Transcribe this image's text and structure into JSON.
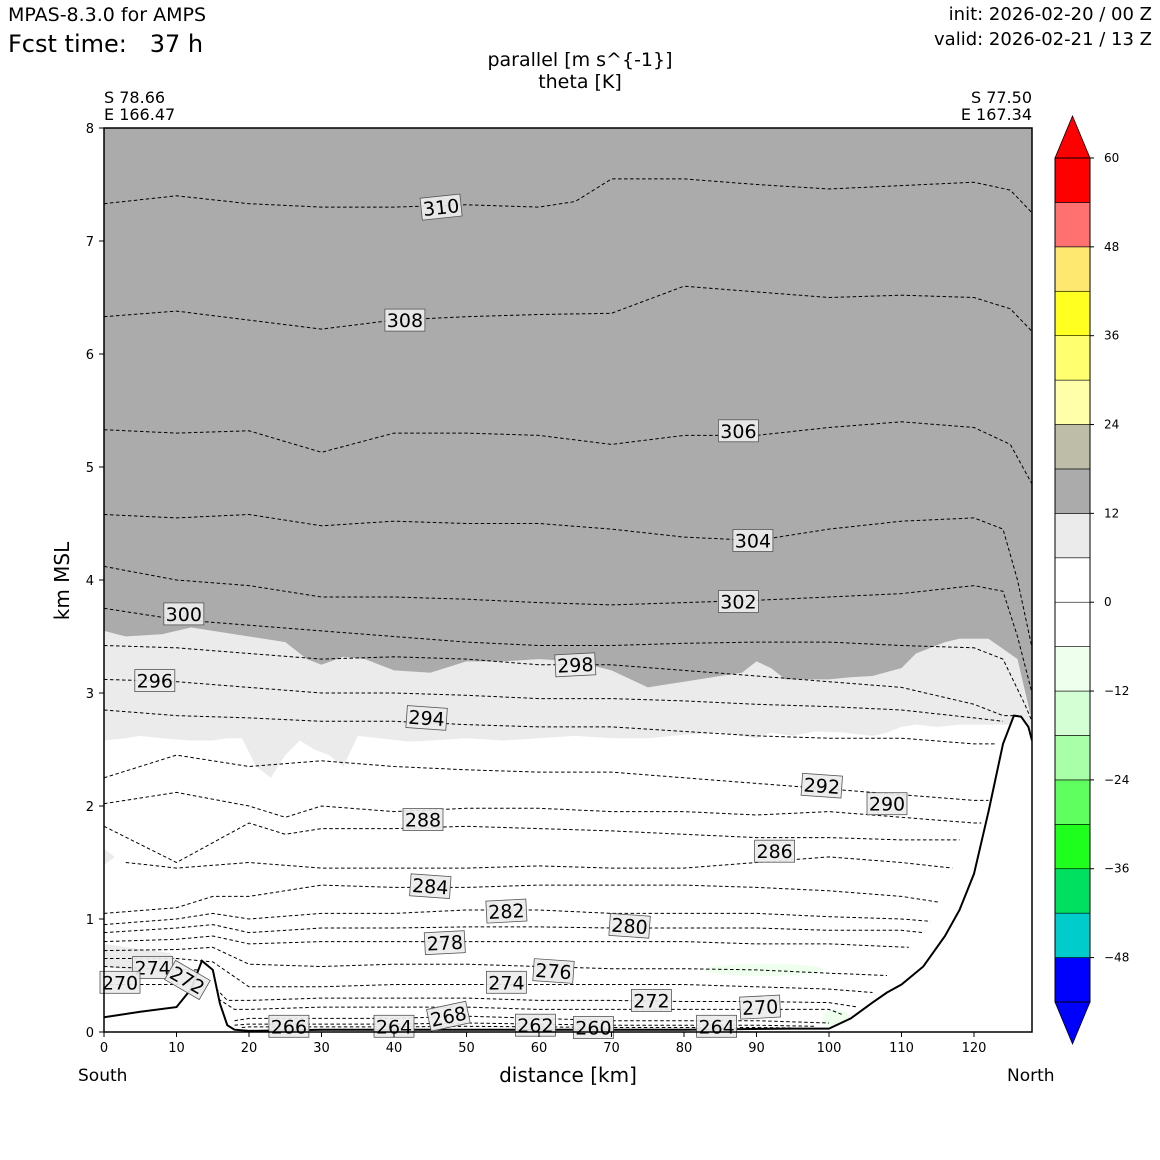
{
  "header": {
    "model": "MPAS-8.3.0 for AMPS",
    "fcst_time": "Fcst time:   37 h",
    "init": "init: 2026-02-20 / 00 Z",
    "valid": "valid: 2026-02-21 / 13 Z"
  },
  "title": {
    "line1": "parallel [m s^{-1}]",
    "line2": "theta [K]"
  },
  "endpoints": {
    "left_lat": "S 78.66",
    "left_lon": "E 166.47",
    "right_lat": "S 77.50",
    "right_lon": "E 167.34"
  },
  "axes": {
    "xlabel": "distance [km]",
    "ylabel": "km MSL",
    "south_label": "South",
    "north_label": "North"
  },
  "chart_data": {
    "type": "contour",
    "x_range": [
      0,
      128
    ],
    "y_range": [
      0,
      8
    ],
    "x_ticks": [
      0,
      10,
      20,
      30,
      40,
      50,
      60,
      70,
      80,
      90,
      100,
      110,
      120
    ],
    "y_ticks": [
      0,
      1,
      2,
      3,
      4,
      5,
      6,
      7,
      8
    ],
    "colorbar": {
      "levels": [
        -54,
        -48,
        -42,
        -36,
        -30,
        -24,
        -18,
        -12,
        -6,
        0,
        6,
        12,
        18,
        24,
        30,
        36,
        42,
        48,
        54,
        60
      ],
      "colors": [
        "#0000ff",
        "#00cccc",
        "#00e060",
        "#1eff1e",
        "#60ff60",
        "#a8ffa8",
        "#d4ffd4",
        "#eeffee",
        "#ffffff",
        "#ffffff",
        "#ebebeb",
        "#ababab",
        "#bebea8",
        "#ffffaa",
        "#ffff70",
        "#ffff20",
        "#ffe870",
        "#ff7070",
        "#ff0000"
      ],
      "under_color": "#0000ff",
      "over_color": "#ff0000",
      "tick_values": [
        -48,
        -36,
        -24,
        -12,
        0,
        12,
        24,
        36,
        48,
        60
      ],
      "tick_labels": [
        "−48",
        "−36",
        "−24",
        "−12",
        "0",
        "12",
        "24",
        "36",
        "48",
        "60"
      ]
    },
    "parallel_wind_regions": [
      {
        "range": "12 to 18",
        "color": "#ababab",
        "description_bounds": "above ~3.0-3.6 km"
      },
      {
        "range": "6 to 12",
        "color": "#ebebeb",
        "description_bounds": "~2.6-3.6 km band"
      },
      {
        "range": "-6 to 0",
        "color": "#eeffee",
        "description_bounds": "small patches near surface"
      }
    ],
    "terrain": {
      "x": [
        0,
        5,
        10,
        12,
        13.5,
        15,
        16,
        17,
        18,
        20,
        30,
        60,
        80,
        95,
        100,
        103,
        106,
        108,
        110,
        113,
        116,
        118,
        120,
        122,
        124,
        125.5,
        126.5,
        127.5,
        128
      ],
      "y": [
        0.13,
        0.18,
        0.22,
        0.38,
        0.63,
        0.55,
        0.25,
        0.06,
        0.02,
        0.01,
        0.02,
        0.02,
        0.02,
        0.03,
        0.03,
        0.12,
        0.26,
        0.35,
        0.42,
        0.58,
        0.85,
        1.08,
        1.4,
        1.95,
        2.55,
        2.8,
        2.79,
        2.7,
        2.58
      ]
    },
    "theta_contours": [
      {
        "value": 310,
        "x": [
          0,
          10,
          20,
          30,
          40,
          50,
          60,
          65,
          70,
          80,
          90,
          100,
          110,
          120,
          125,
          128
        ],
        "y": [
          7.33,
          7.4,
          7.33,
          7.3,
          7.3,
          7.32,
          7.3,
          7.35,
          7.55,
          7.55,
          7.5,
          7.46,
          7.49,
          7.52,
          7.45,
          7.25
        ]
      },
      {
        "value": 308,
        "x": [
          0,
          10,
          20,
          30,
          40,
          50,
          60,
          70,
          80,
          90,
          100,
          110,
          120,
          125,
          128
        ],
        "y": [
          6.33,
          6.38,
          6.3,
          6.22,
          6.3,
          6.33,
          6.35,
          6.36,
          6.6,
          6.55,
          6.5,
          6.52,
          6.5,
          6.4,
          6.2
        ]
      },
      {
        "value": 306,
        "x": [
          0,
          10,
          20,
          30,
          40,
          50,
          60,
          70,
          80,
          90,
          100,
          110,
          120,
          125,
          128
        ],
        "y": [
          5.33,
          5.3,
          5.32,
          5.13,
          5.3,
          5.3,
          5.28,
          5.2,
          5.28,
          5.28,
          5.35,
          5.4,
          5.35,
          5.2,
          4.85
        ]
      },
      {
        "value": 304,
        "x": [
          0,
          10,
          20,
          30,
          40,
          50,
          60,
          70,
          80,
          90,
          100,
          110,
          120,
          124,
          126,
          128
        ],
        "y": [
          4.58,
          4.55,
          4.58,
          4.48,
          4.52,
          4.5,
          4.5,
          4.45,
          4.38,
          4.35,
          4.45,
          4.52,
          4.55,
          4.45,
          4.0,
          3.4
        ]
      },
      {
        "value": 302,
        "x": [
          0,
          10,
          20,
          30,
          40,
          50,
          60,
          70,
          80,
          90,
          100,
          110,
          120,
          124,
          126,
          128
        ],
        "y": [
          4.12,
          4.0,
          3.95,
          3.85,
          3.85,
          3.83,
          3.8,
          3.78,
          3.8,
          3.82,
          3.85,
          3.88,
          3.95,
          3.9,
          3.5,
          3.0
        ]
      },
      {
        "value": 300,
        "x": [
          0,
          10,
          20,
          30,
          40,
          50,
          60,
          70,
          80,
          90,
          100,
          110,
          120,
          124,
          127,
          128
        ],
        "y": [
          3.75,
          3.65,
          3.6,
          3.55,
          3.5,
          3.45,
          3.42,
          3.42,
          3.44,
          3.45,
          3.45,
          3.42,
          3.4,
          3.3,
          2.9,
          2.75
        ]
      },
      {
        "value": 298,
        "x": [
          0,
          10,
          20,
          30,
          40,
          50,
          60,
          70,
          80,
          90,
          100,
          110,
          120,
          124,
          126
        ],
        "y": [
          3.42,
          3.4,
          3.35,
          3.3,
          3.32,
          3.3,
          3.25,
          3.25,
          3.2,
          3.15,
          3.1,
          3.05,
          2.9,
          2.8,
          2.8
        ]
      },
      {
        "value": 296,
        "x": [
          0,
          10,
          20,
          30,
          40,
          50,
          60,
          70,
          80,
          90,
          100,
          110,
          120,
          124
        ],
        "y": [
          3.12,
          3.1,
          3.05,
          3.0,
          3.0,
          2.98,
          2.95,
          2.95,
          2.93,
          2.9,
          2.88,
          2.85,
          2.78,
          2.75
        ]
      },
      {
        "value": 294,
        "x": [
          0,
          10,
          20,
          30,
          40,
          50,
          60,
          70,
          80,
          90,
          100,
          110,
          120,
          123
        ],
        "y": [
          2.85,
          2.8,
          2.78,
          2.75,
          2.75,
          2.72,
          2.7,
          2.7,
          2.66,
          2.62,
          2.6,
          2.6,
          2.55,
          2.55
        ]
      },
      {
        "value": 292,
        "x": [
          0,
          10,
          20,
          30,
          40,
          50,
          60,
          70,
          80,
          90,
          100,
          110,
          120,
          122
        ],
        "y": [
          2.25,
          2.45,
          2.35,
          2.4,
          2.35,
          2.32,
          2.3,
          2.3,
          2.25,
          2.2,
          2.15,
          2.1,
          2.05,
          2.05
        ]
      },
      {
        "value": 290,
        "x": [
          0,
          10,
          20,
          25,
          30,
          40,
          50,
          60,
          70,
          80,
          90,
          100,
          110,
          120,
          121
        ],
        "y": [
          2.02,
          2.12,
          2.0,
          1.9,
          2.0,
          1.95,
          1.98,
          1.98,
          1.95,
          1.95,
          1.92,
          1.95,
          1.9,
          1.85,
          1.85
        ]
      },
      {
        "value": 288,
        "x": [
          0,
          10,
          20,
          25,
          30,
          40,
          50,
          60,
          70,
          80,
          90,
          100,
          110,
          118
        ],
        "y": [
          1.82,
          1.5,
          1.85,
          1.75,
          1.8,
          1.8,
          1.82,
          1.8,
          1.78,
          1.75,
          1.72,
          1.72,
          1.7,
          1.7
        ]
      },
      {
        "value": 286,
        "x": [
          3,
          6,
          10,
          20,
          30,
          40,
          50,
          60,
          70,
          80,
          90,
          100,
          110,
          117
        ],
        "y": [
          1.5,
          1.48,
          1.45,
          1.5,
          1.45,
          1.45,
          1.45,
          1.47,
          1.45,
          1.45,
          1.5,
          1.55,
          1.5,
          1.45
        ]
      },
      {
        "value": 284,
        "x": [
          0,
          10,
          15,
          20,
          30,
          40,
          50,
          60,
          70,
          80,
          90,
          100,
          110,
          115
        ],
        "y": [
          1.05,
          1.1,
          1.2,
          1.2,
          1.3,
          1.28,
          1.28,
          1.3,
          1.3,
          1.3,
          1.28,
          1.25,
          1.2,
          1.15
        ]
      },
      {
        "value": 282,
        "x": [
          0,
          10,
          15,
          20,
          30,
          40,
          50,
          60,
          70,
          80,
          90,
          100,
          110,
          114
        ],
        "y": [
          0.95,
          1.0,
          1.05,
          1.0,
          1.05,
          1.05,
          1.08,
          1.08,
          1.05,
          1.05,
          1.05,
          1.02,
          1.0,
          0.98
        ]
      },
      {
        "value": 280,
        "x": [
          0,
          10,
          15,
          20,
          30,
          40,
          50,
          60,
          70,
          80,
          90,
          100,
          110,
          113
        ],
        "y": [
          0.88,
          0.92,
          0.95,
          0.88,
          0.92,
          0.92,
          0.93,
          0.93,
          0.92,
          0.92,
          0.92,
          0.9,
          0.9,
          0.88
        ]
      },
      {
        "value": 278,
        "x": [
          0,
          10,
          15,
          20,
          30,
          40,
          50,
          60,
          70,
          80,
          90,
          100,
          111
        ],
        "y": [
          0.8,
          0.82,
          0.85,
          0.78,
          0.8,
          0.8,
          0.8,
          0.8,
          0.8,
          0.8,
          0.78,
          0.78,
          0.75
        ]
      },
      {
        "value": 276,
        "x": [
          0,
          10,
          15,
          20,
          30,
          40,
          50,
          60,
          70,
          80,
          90,
          100,
          108
        ],
        "y": [
          0.72,
          0.73,
          0.75,
          0.6,
          0.58,
          0.6,
          0.6,
          0.58,
          0.56,
          0.56,
          0.55,
          0.52,
          0.5
        ]
      },
      {
        "value": 274,
        "x": [
          0,
          10,
          15,
          20,
          30,
          40,
          50,
          60,
          70,
          80,
          90,
          100,
          106
        ],
        "y": [
          0.65,
          0.65,
          0.62,
          0.4,
          0.4,
          0.42,
          0.42,
          0.42,
          0.42,
          0.42,
          0.4,
          0.38,
          0.35
        ]
      },
      {
        "value": 272,
        "x": [
          0,
          10,
          13,
          17,
          20,
          30,
          40,
          50,
          60,
          70,
          80,
          90,
          100,
          104
        ],
        "y": [
          0.58,
          0.55,
          0.55,
          0.28,
          0.28,
          0.3,
          0.3,
          0.3,
          0.28,
          0.28,
          0.27,
          0.27,
          0.26,
          0.22
        ]
      },
      {
        "value": 270,
        "x": [
          0,
          10,
          12,
          18,
          20,
          30,
          40,
          50,
          60,
          70,
          80,
          90,
          100,
          102
        ],
        "y": [
          0.42,
          0.42,
          0.45,
          0.2,
          0.2,
          0.22,
          0.22,
          0.22,
          0.2,
          0.2,
          0.2,
          0.2,
          0.2,
          0.15
        ]
      },
      {
        "value": 268,
        "x": [
          18,
          20,
          30,
          40,
          50,
          60,
          70,
          80,
          90,
          100
        ],
        "y": [
          0.1,
          0.12,
          0.12,
          0.12,
          0.14,
          0.12,
          0.1,
          0.1,
          0.1,
          0.08
        ]
      },
      {
        "value": 266,
        "x": [
          18,
          20,
          30,
          40,
          50,
          60,
          70,
          80,
          90,
          98
        ],
        "y": [
          0.06,
          0.07,
          0.07,
          0.07,
          0.08,
          0.07,
          0.06,
          0.06,
          0.06,
          0.05
        ]
      },
      {
        "value": 264,
        "x": [
          19,
          20,
          30,
          40,
          50,
          60,
          70,
          80,
          90,
          95
        ],
        "y": [
          0.04,
          0.045,
          0.045,
          0.045,
          0.05,
          0.045,
          0.04,
          0.04,
          0.04,
          0.035
        ]
      }
    ],
    "contour_labels": [
      {
        "text": "310",
        "x": 46.5,
        "y": 7.3,
        "rot": -6
      },
      {
        "text": "308",
        "x": 41.5,
        "y": 6.3,
        "rot": 0
      },
      {
        "text": "306",
        "x": 87.5,
        "y": 5.32,
        "rot": 0
      },
      {
        "text": "304",
        "x": 89.5,
        "y": 4.35,
        "rot": 0
      },
      {
        "text": "302",
        "x": 87.5,
        "y": 3.81,
        "rot": 0
      },
      {
        "text": "300",
        "x": 11,
        "y": 3.7,
        "rot": 0
      },
      {
        "text": "298",
        "x": 65,
        "y": 3.25,
        "rot": -3
      },
      {
        "text": "296",
        "x": 7,
        "y": 3.11,
        "rot": 0
      },
      {
        "text": "294",
        "x": 44.5,
        "y": 2.78,
        "rot": 4
      },
      {
        "text": "292",
        "x": 99,
        "y": 2.18,
        "rot": 4
      },
      {
        "text": "290",
        "x": 108,
        "y": 2.02,
        "rot": 0
      },
      {
        "text": "288",
        "x": 44,
        "y": 1.88,
        "rot": 0
      },
      {
        "text": "286",
        "x": 92.5,
        "y": 1.6,
        "rot": 0
      },
      {
        "text": "284",
        "x": 45,
        "y": 1.29,
        "rot": 4
      },
      {
        "text": "282",
        "x": 55.5,
        "y": 1.07,
        "rot": -3
      },
      {
        "text": "280",
        "x": 72.5,
        "y": 0.94,
        "rot": 4
      },
      {
        "text": "278",
        "x": 47,
        "y": 0.79,
        "rot": -3
      },
      {
        "text": "276",
        "x": 62,
        "y": 0.54,
        "rot": 4
      },
      {
        "text": "274",
        "x": 55.5,
        "y": 0.44,
        "rot": 0
      },
      {
        "text": "274",
        "x": 6.7,
        "y": 0.57,
        "rot": 0
      },
      {
        "text": "272",
        "x": 11.5,
        "y": 0.46,
        "rot": 30
      },
      {
        "text": "272",
        "x": 75.5,
        "y": 0.28,
        "rot": 0
      },
      {
        "text": "270",
        "x": 2.2,
        "y": 0.44,
        "rot": 0
      },
      {
        "text": "270",
        "x": 90.5,
        "y": 0.22,
        "rot": -3
      },
      {
        "text": "268",
        "x": 47.5,
        "y": 0.14,
        "rot": -12
      },
      {
        "text": "266",
        "x": 25.5,
        "y": 0.05,
        "rot": 0
      },
      {
        "text": "264",
        "x": 40,
        "y": 0.05,
        "rot": 0
      },
      {
        "text": "264",
        "x": 84.5,
        "y": 0.05,
        "rot": 0
      },
      {
        "text": "262",
        "x": 59.5,
        "y": 0.06,
        "rot": 0
      },
      {
        "text": "260",
        "x": 67.5,
        "y": 0.04,
        "rot": 0
      }
    ]
  }
}
